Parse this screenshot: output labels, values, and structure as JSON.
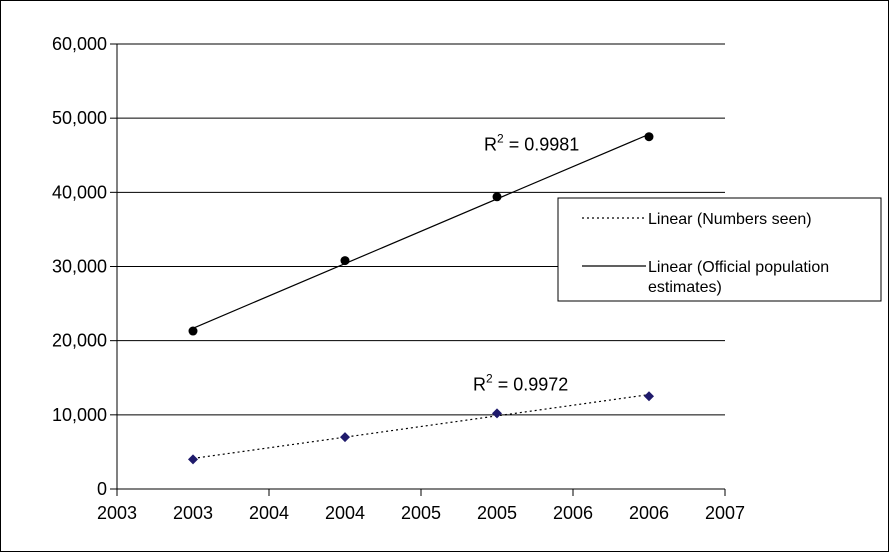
{
  "chart_data": {
    "type": "scatter",
    "title": "",
    "xlabel": "",
    "ylabel": "",
    "xlim": [
      2003,
      2007
    ],
    "ylim": [
      0,
      60000
    ],
    "grid": true,
    "legend_position": "right",
    "x_tick_labels": [
      "2003",
      "2003",
      "2004",
      "2004",
      "2005",
      "2005",
      "2006",
      "2006",
      "2007"
    ],
    "y_tick_labels": [
      "0",
      "10,000",
      "20,000",
      "30,000",
      "40,000",
      "50,000",
      "60,000"
    ],
    "series": [
      {
        "marker": "circle",
        "color": "#000000",
        "points": [
          {
            "x": 2003.5,
            "y": 21300
          },
          {
            "x": 2004.5,
            "y": 30800
          },
          {
            "x": 2005.5,
            "y": 39400
          },
          {
            "x": 2006.5,
            "y": 47500
          }
        ],
        "trendline": {
          "name": "Linear (Official population estimates)",
          "style": "solid",
          "r2_label": "R",
          "r2_sup": "2",
          "r2_value": " = 0.9981"
        }
      },
      {
        "marker": "diamond",
        "color": "#1f1a6b",
        "points": [
          {
            "x": 2003.5,
            "y": 4000
          },
          {
            "x": 2004.5,
            "y": 7000
          },
          {
            "x": 2005.5,
            "y": 10200
          },
          {
            "x": 2006.5,
            "y": 12500
          }
        ],
        "trendline": {
          "name": "Linear (Numbers seen)",
          "style": "dotted",
          "r2_label": "R",
          "r2_sup": "2",
          "r2_value": " = 0.9972"
        }
      }
    ],
    "legend": [
      {
        "label": "Linear (Numbers seen)",
        "style": "dotted"
      },
      {
        "label": "Linear (Official population estimates)",
        "lines": [
          "Linear (Official population",
          "estimates)"
        ],
        "style": "solid"
      }
    ]
  }
}
